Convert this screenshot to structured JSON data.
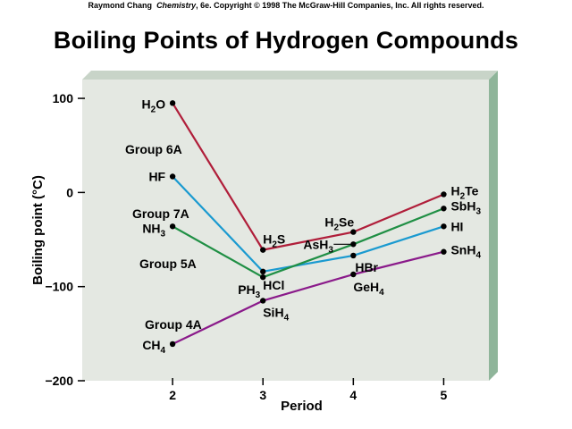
{
  "header": {
    "copyright_pre": "Raymond Chang",
    "copyright_book": "Chemistry",
    "copyright_post": ", 6e.  Copyright © 1998 The McGraw-Hill Companies, Inc. All rights reserved."
  },
  "chart_data": {
    "type": "line",
    "title": "Boiling Points of Hydrogen Compounds",
    "xlabel": "Period",
    "ylabel": "Boiling point (°C)",
    "x": [
      2,
      3,
      4,
      5
    ],
    "xlim": [
      1,
      5.5
    ],
    "ylim": [
      -200,
      120
    ],
    "yticks": [
      100,
      0,
      -100,
      -200
    ],
    "ytick_labels": [
      "100",
      "0",
      "−100",
      "−200"
    ],
    "grid": false,
    "background": "#e4e8e2",
    "series": [
      {
        "name": "Group 6A",
        "color": "#b01e3a",
        "values": [
          95,
          -61,
          -42,
          -2
        ],
        "compounds": [
          "H2O",
          "H2S",
          "H2Se",
          "H2Te"
        ]
      },
      {
        "name": "Group 7A",
        "color": "#1a9ad0",
        "values": [
          17,
          -84,
          -67,
          -36
        ],
        "compounds": [
          "HF",
          "HCl",
          "HBr",
          "HI"
        ]
      },
      {
        "name": "Group 5A",
        "color": "#1f8f44",
        "values": [
          -36,
          -90,
          -55,
          -17
        ],
        "compounds": [
          "NH3",
          "PH3",
          "AsH3",
          "SbH3"
        ]
      },
      {
        "name": "Group 4A",
        "color": "#8a1a8a",
        "values": [
          -161,
          -115,
          -87,
          -63
        ],
        "compounds": [
          "CH4",
          "SiH4",
          "GeH4",
          "SnH4"
        ]
      }
    ]
  }
}
